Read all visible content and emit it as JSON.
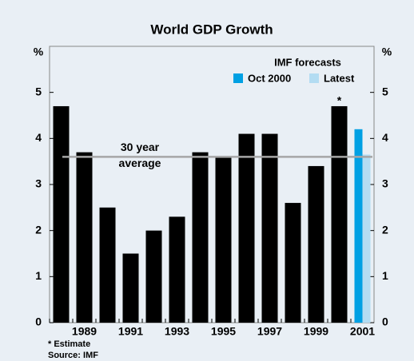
{
  "chart_data": {
    "type": "bar",
    "title": "World GDP Growth",
    "y_unit": "%",
    "categories": [
      null,
      "1989",
      null,
      "1991",
      null,
      "1993",
      null,
      "1995",
      null,
      "1997",
      null,
      "1999",
      null,
      "2001"
    ],
    "values": [
      4.7,
      3.7,
      2.5,
      1.5,
      2.0,
      2.3,
      3.7,
      3.6,
      4.1,
      4.1,
      2.6,
      3.4,
      4.7,
      null
    ],
    "color": "#000000",
    "legend_title": "IMF forecasts",
    "series": [
      {
        "name": "Oct 2000",
        "color": "#00a0e3",
        "values": [
          null,
          null,
          null,
          null,
          null,
          null,
          null,
          null,
          null,
          null,
          null,
          null,
          null,
          4.2
        ]
      },
      {
        "name": "Latest",
        "color": "#b3dcf2",
        "values": [
          null,
          null,
          null,
          null,
          null,
          null,
          null,
          null,
          null,
          null,
          null,
          null,
          null,
          3.65
        ]
      }
    ],
    "average": 3.6,
    "average_color": "#a6a6a6",
    "average_label": [
      "30 year",
      "average"
    ],
    "estimate_marker": "*",
    "footnotes": [
      "* Estimate",
      "Source: IMF"
    ],
    "ylim": [
      0,
      6
    ],
    "yticks": [
      0,
      1,
      2,
      3,
      4,
      5
    ]
  }
}
